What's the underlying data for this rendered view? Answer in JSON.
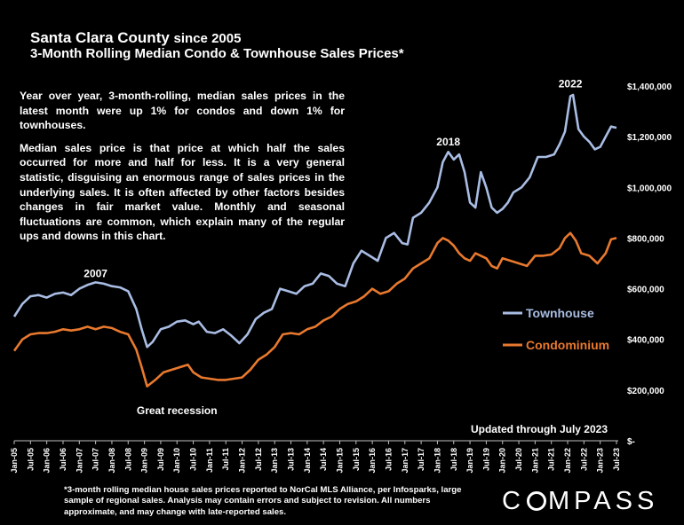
{
  "header": {
    "title_main": "Santa Clara County",
    "title_since": "since 2005",
    "subtitle": "3-Month Rolling Median Condo & Townhouse Sales Prices*"
  },
  "notes": {
    "p1": "Year over year, 3-month-rolling, median sales prices in the latest month were up 1% for condos and down 1% for townhouses.",
    "p2": "Median sales price is that price at which half the sales occurred for more and half for less. It is a very general statistic, disguising an enormous range of sales prices in the underlying sales. It is often affected by other factors besides changes in fair market value. Monthly and seasonal fluctuations are common, which explain many of the regular ups and downs in this chart."
  },
  "updated": "Updated through July 2023",
  "footnote": "*3-month rolling median house sales prices reported to NorCal MLS Alliance, per Infosparks, large sample of regional sales. Analysis may contain errors and subject to revision. All numbers approximate, and may change with late-reported sales.",
  "logo": "COMPASS",
  "colors": {
    "townhouse": "#a9bce3",
    "condominium": "#e8792e",
    "background": "#000000",
    "text": "#ffffff"
  },
  "chart_data": {
    "type": "line",
    "y_axis_side": "right",
    "ylim": [
      0,
      1400000
    ],
    "y_ticks": [
      0,
      200000,
      400000,
      600000,
      800000,
      1000000,
      1200000,
      1400000
    ],
    "y_tick_labels": [
      "$-",
      "$200,000",
      "$400,000",
      "$600,000",
      "$800,000",
      "$1,000,000",
      "$1,200,000",
      "$1,400,000"
    ],
    "x_tick_labels": [
      "Jan-05",
      "Jul-05",
      "Jan-06",
      "Jul-06",
      "Jan-07",
      "Jul-07",
      "Jan-08",
      "Jul-08",
      "Jan-09",
      "Jul-09",
      "Jan-10",
      "Jul-10",
      "Jan-11",
      "Jul-11",
      "Jan-12",
      "Jul-12",
      "Jan-13",
      "Jul-13",
      "Jan-14",
      "Jul-14",
      "Jan-15",
      "Jul-15",
      "Jan-16",
      "Jul-16",
      "Jan-17",
      "Jul-17",
      "Jan-18",
      "Jul-18",
      "Jan-19",
      "Jul-19",
      "Jan-20",
      "Jul-20",
      "Jan-21",
      "Jul-21",
      "Jan-22",
      "Jul-22",
      "Jan-23",
      "Jul-23"
    ],
    "x_tick_months": [
      0,
      6,
      12,
      18,
      24,
      30,
      36,
      42,
      48,
      54,
      60,
      66,
      72,
      78,
      84,
      90,
      96,
      102,
      108,
      114,
      120,
      126,
      132,
      138,
      144,
      150,
      156,
      162,
      168,
      174,
      180,
      186,
      192,
      198,
      204,
      210,
      216,
      222
    ],
    "x_range_months": [
      0,
      222
    ],
    "series": [
      {
        "name": "Townhouse",
        "color": "#a9bce3",
        "points": [
          [
            0,
            490000
          ],
          [
            3,
            540000
          ],
          [
            6,
            570000
          ],
          [
            9,
            575000
          ],
          [
            12,
            565000
          ],
          [
            15,
            580000
          ],
          [
            18,
            585000
          ],
          [
            21,
            575000
          ],
          [
            24,
            600000
          ],
          [
            27,
            615000
          ],
          [
            30,
            625000
          ],
          [
            33,
            620000
          ],
          [
            36,
            610000
          ],
          [
            39,
            605000
          ],
          [
            42,
            590000
          ],
          [
            45,
            520000
          ],
          [
            47,
            440000
          ],
          [
            49,
            370000
          ],
          [
            51,
            390000
          ],
          [
            54,
            440000
          ],
          [
            57,
            450000
          ],
          [
            60,
            470000
          ],
          [
            63,
            475000
          ],
          [
            66,
            460000
          ],
          [
            68,
            470000
          ],
          [
            71,
            430000
          ],
          [
            74,
            425000
          ],
          [
            77,
            440000
          ],
          [
            80,
            415000
          ],
          [
            83,
            385000
          ],
          [
            86,
            420000
          ],
          [
            89,
            480000
          ],
          [
            92,
            505000
          ],
          [
            95,
            520000
          ],
          [
            98,
            600000
          ],
          [
            101,
            590000
          ],
          [
            104,
            580000
          ],
          [
            107,
            610000
          ],
          [
            110,
            620000
          ],
          [
            113,
            660000
          ],
          [
            116,
            650000
          ],
          [
            119,
            620000
          ],
          [
            122,
            610000
          ],
          [
            125,
            700000
          ],
          [
            128,
            750000
          ],
          [
            131,
            730000
          ],
          [
            134,
            710000
          ],
          [
            137,
            800000
          ],
          [
            140,
            820000
          ],
          [
            143,
            780000
          ],
          [
            145,
            775000
          ],
          [
            147,
            880000
          ],
          [
            150,
            900000
          ],
          [
            153,
            940000
          ],
          [
            156,
            1000000
          ],
          [
            158,
            1100000
          ],
          [
            160,
            1140000
          ],
          [
            162,
            1110000
          ],
          [
            164,
            1130000
          ],
          [
            166,
            1060000
          ],
          [
            168,
            940000
          ],
          [
            170,
            920000
          ],
          [
            172,
            1060000
          ],
          [
            174,
            1000000
          ],
          [
            176,
            920000
          ],
          [
            178,
            900000
          ],
          [
            180,
            915000
          ],
          [
            182,
            940000
          ],
          [
            184,
            980000
          ],
          [
            187,
            1000000
          ],
          [
            190,
            1040000
          ],
          [
            193,
            1120000
          ],
          [
            196,
            1120000
          ],
          [
            199,
            1130000
          ],
          [
            201,
            1170000
          ],
          [
            203,
            1220000
          ],
          [
            205,
            1360000
          ],
          [
            206,
            1365000
          ],
          [
            208,
            1230000
          ],
          [
            210,
            1200000
          ],
          [
            212,
            1180000
          ],
          [
            214,
            1150000
          ],
          [
            216,
            1160000
          ],
          [
            218,
            1200000
          ],
          [
            220,
            1240000
          ],
          [
            222,
            1235000
          ]
        ]
      },
      {
        "name": "Condominium",
        "color": "#e8792e",
        "points": [
          [
            0,
            355000
          ],
          [
            3,
            400000
          ],
          [
            6,
            420000
          ],
          [
            9,
            425000
          ],
          [
            12,
            425000
          ],
          [
            15,
            430000
          ],
          [
            18,
            440000
          ],
          [
            21,
            435000
          ],
          [
            24,
            440000
          ],
          [
            27,
            450000
          ],
          [
            30,
            440000
          ],
          [
            33,
            450000
          ],
          [
            36,
            445000
          ],
          [
            39,
            430000
          ],
          [
            42,
            420000
          ],
          [
            45,
            360000
          ],
          [
            47,
            290000
          ],
          [
            49,
            215000
          ],
          [
            52,
            240000
          ],
          [
            55,
            270000
          ],
          [
            58,
            280000
          ],
          [
            61,
            290000
          ],
          [
            64,
            300000
          ],
          [
            66,
            270000
          ],
          [
            69,
            250000
          ],
          [
            72,
            245000
          ],
          [
            75,
            240000
          ],
          [
            78,
            240000
          ],
          [
            81,
            245000
          ],
          [
            84,
            250000
          ],
          [
            87,
            280000
          ],
          [
            90,
            320000
          ],
          [
            93,
            340000
          ],
          [
            96,
            370000
          ],
          [
            99,
            420000
          ],
          [
            102,
            425000
          ],
          [
            105,
            420000
          ],
          [
            108,
            440000
          ],
          [
            111,
            450000
          ],
          [
            114,
            475000
          ],
          [
            117,
            490000
          ],
          [
            120,
            520000
          ],
          [
            123,
            540000
          ],
          [
            126,
            550000
          ],
          [
            129,
            570000
          ],
          [
            132,
            600000
          ],
          [
            135,
            580000
          ],
          [
            138,
            590000
          ],
          [
            141,
            620000
          ],
          [
            144,
            640000
          ],
          [
            147,
            680000
          ],
          [
            150,
            700000
          ],
          [
            153,
            720000
          ],
          [
            156,
            780000
          ],
          [
            158,
            800000
          ],
          [
            160,
            790000
          ],
          [
            162,
            770000
          ],
          [
            164,
            740000
          ],
          [
            166,
            720000
          ],
          [
            168,
            710000
          ],
          [
            170,
            740000
          ],
          [
            172,
            730000
          ],
          [
            174,
            720000
          ],
          [
            176,
            690000
          ],
          [
            178,
            680000
          ],
          [
            180,
            720000
          ],
          [
            183,
            710000
          ],
          [
            186,
            700000
          ],
          [
            189,
            690000
          ],
          [
            192,
            730000
          ],
          [
            195,
            730000
          ],
          [
            198,
            735000
          ],
          [
            201,
            760000
          ],
          [
            203,
            800000
          ],
          [
            205,
            820000
          ],
          [
            207,
            790000
          ],
          [
            209,
            740000
          ],
          [
            212,
            730000
          ],
          [
            215,
            700000
          ],
          [
            218,
            740000
          ],
          [
            220,
            795000
          ],
          [
            222,
            800000
          ]
        ]
      }
    ],
    "annotations": [
      {
        "text": "2007",
        "x_month": 30,
        "y": 645000
      },
      {
        "text": "Great recession",
        "x_month": 60,
        "y": 105000
      },
      {
        "text": "2018",
        "x_month": 160,
        "y": 1165000
      },
      {
        "text": "2022",
        "x_month": 205,
        "y": 1395000
      }
    ],
    "legend": [
      {
        "label": "Townhouse",
        "color": "#a9bce3"
      },
      {
        "label": "Condominium",
        "color": "#e8792e"
      }
    ],
    "legend_placement": "right",
    "grid": false
  }
}
